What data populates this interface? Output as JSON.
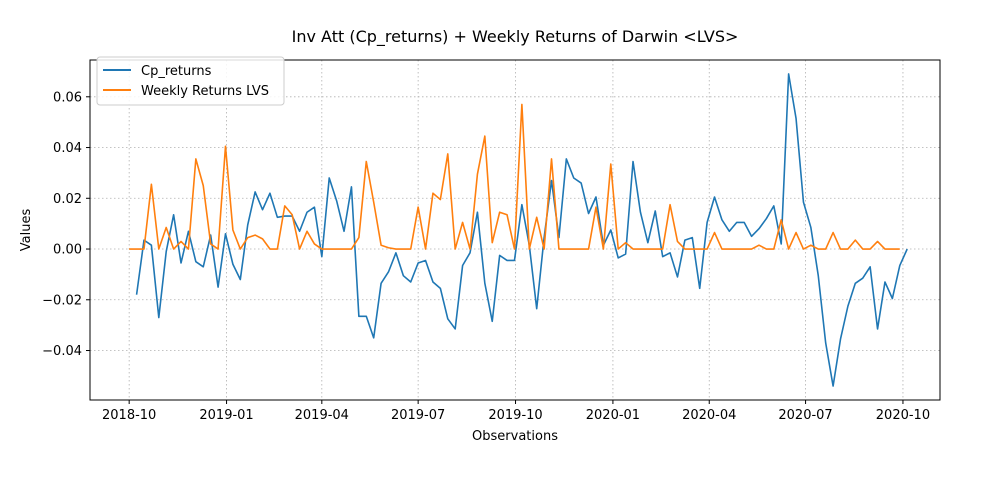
{
  "chart_data": {
    "type": "line",
    "title": "Inv Att (Cp_returns) + Weekly Returns of Darwin <LVS>",
    "xlabel": "Observations",
    "ylabel": "Values",
    "grid": true,
    "legend_position": "upper-left",
    "xlim": [
      "2018-08-25",
      "2020-11-05"
    ],
    "ylim": [
      -0.0595,
      0.0745
    ],
    "x_ticks": [
      {
        "date": "2018-10-01",
        "label": "2018-10"
      },
      {
        "date": "2019-01-01",
        "label": "2019-01"
      },
      {
        "date": "2019-04-01",
        "label": "2019-04"
      },
      {
        "date": "2019-07-01",
        "label": "2019-07"
      },
      {
        "date": "2019-10-01",
        "label": "2019-10"
      },
      {
        "date": "2020-01-01",
        "label": "2020-01"
      },
      {
        "date": "2020-04-01",
        "label": "2020-04"
      },
      {
        "date": "2020-07-01",
        "label": "2020-07"
      },
      {
        "date": "2020-10-01",
        "label": "2020-10"
      }
    ],
    "y_ticks": [
      {
        "value": -0.04,
        "label": "−0.04"
      },
      {
        "value": -0.02,
        "label": "−0.02"
      },
      {
        "value": 0.0,
        "label": "0.00"
      },
      {
        "value": 0.02,
        "label": "0.02"
      },
      {
        "value": 0.04,
        "label": "0.04"
      },
      {
        "value": 0.06,
        "label": "0.06"
      }
    ],
    "series": [
      {
        "name": "Cp_returns",
        "color": "#1f77b4",
        "points": [
          [
            "2018-10-08",
            -0.018
          ],
          [
            "2018-10-15",
            0.0035
          ],
          [
            "2018-10-22",
            0.0015
          ],
          [
            "2018-10-29",
            -0.027
          ],
          [
            "2018-11-05",
            -0.001
          ],
          [
            "2018-11-12",
            0.0135
          ],
          [
            "2018-11-19",
            -0.0055
          ],
          [
            "2018-11-26",
            0.007
          ],
          [
            "2018-12-03",
            -0.005
          ],
          [
            "2018-12-10",
            -0.007
          ],
          [
            "2018-12-17",
            0.0055
          ],
          [
            "2018-12-24",
            -0.015
          ],
          [
            "2018-12-31",
            0.006
          ],
          [
            "2019-01-07",
            -0.006
          ],
          [
            "2019-01-14",
            -0.012
          ],
          [
            "2019-01-21",
            0.0095
          ],
          [
            "2019-01-28",
            0.0225
          ],
          [
            "2019-02-04",
            0.0155
          ],
          [
            "2019-02-11",
            0.022
          ],
          [
            "2019-02-18",
            0.0125
          ],
          [
            "2019-02-25",
            0.013
          ],
          [
            "2019-03-04",
            0.013
          ],
          [
            "2019-03-11",
            0.007
          ],
          [
            "2019-03-18",
            0.0145
          ],
          [
            "2019-03-25",
            0.0165
          ],
          [
            "2019-04-01",
            -0.003
          ],
          [
            "2019-04-08",
            0.028
          ],
          [
            "2019-04-15",
            0.019
          ],
          [
            "2019-04-22",
            0.007
          ],
          [
            "2019-04-29",
            0.0245
          ],
          [
            "2019-05-06",
            -0.0265
          ],
          [
            "2019-05-13",
            -0.0265
          ],
          [
            "2019-05-20",
            -0.035
          ],
          [
            "2019-05-27",
            -0.0135
          ],
          [
            "2019-06-03",
            -0.009
          ],
          [
            "2019-06-10",
            -0.0015
          ],
          [
            "2019-06-17",
            -0.0105
          ],
          [
            "2019-06-24",
            -0.013
          ],
          [
            "2019-07-01",
            -0.0055
          ],
          [
            "2019-07-08",
            -0.0045
          ],
          [
            "2019-07-15",
            -0.013
          ],
          [
            "2019-07-22",
            -0.0155
          ],
          [
            "2019-07-29",
            -0.0275
          ],
          [
            "2019-08-05",
            -0.0315
          ],
          [
            "2019-08-12",
            -0.0065
          ],
          [
            "2019-08-19",
            -0.0015
          ],
          [
            "2019-08-26",
            0.0145
          ],
          [
            "2019-09-02",
            -0.0135
          ],
          [
            "2019-09-09",
            -0.0285
          ],
          [
            "2019-09-16",
            -0.0025
          ],
          [
            "2019-09-23",
            -0.0045
          ],
          [
            "2019-09-30",
            -0.0045
          ],
          [
            "2019-10-07",
            0.0175
          ],
          [
            "2019-10-14",
            0.0015
          ],
          [
            "2019-10-21",
            -0.0235
          ],
          [
            "2019-10-28",
            0.0045
          ],
          [
            "2019-11-04",
            0.027
          ],
          [
            "2019-11-11",
            0.0045
          ],
          [
            "2019-11-18",
            0.0355
          ],
          [
            "2019-11-25",
            0.028
          ],
          [
            "2019-12-02",
            0.026
          ],
          [
            "2019-12-09",
            0.014
          ],
          [
            "2019-12-16",
            0.0205
          ],
          [
            "2019-12-23",
            0.0015
          ],
          [
            "2019-12-30",
            0.0075
          ],
          [
            "2020-01-06",
            -0.0035
          ],
          [
            "2020-01-13",
            -0.002
          ],
          [
            "2020-01-20",
            0.0345
          ],
          [
            "2020-01-27",
            0.0145
          ],
          [
            "2020-02-03",
            0.0025
          ],
          [
            "2020-02-10",
            0.015
          ],
          [
            "2020-02-17",
            -0.003
          ],
          [
            "2020-02-24",
            -0.0015
          ],
          [
            "2020-03-02",
            -0.011
          ],
          [
            "2020-03-09",
            0.0035
          ],
          [
            "2020-03-16",
            0.0045
          ],
          [
            "2020-03-23",
            -0.0155
          ],
          [
            "2020-03-30",
            0.0105
          ],
          [
            "2020-04-06",
            0.0205
          ],
          [
            "2020-04-13",
            0.0115
          ],
          [
            "2020-04-20",
            0.007
          ],
          [
            "2020-04-27",
            0.0105
          ],
          [
            "2020-05-04",
            0.0105
          ],
          [
            "2020-05-11",
            0.005
          ],
          [
            "2020-05-18",
            0.008
          ],
          [
            "2020-05-25",
            0.012
          ],
          [
            "2020-06-01",
            0.017
          ],
          [
            "2020-06-08",
            0.002
          ],
          [
            "2020-06-15",
            0.069
          ],
          [
            "2020-06-22",
            0.0515
          ],
          [
            "2020-06-29",
            0.0185
          ],
          [
            "2020-07-06",
            0.0085
          ],
          [
            "2020-07-13",
            -0.0105
          ],
          [
            "2020-07-20",
            -0.037
          ],
          [
            "2020-07-27",
            -0.054
          ],
          [
            "2020-08-03",
            -0.0355
          ],
          [
            "2020-08-10",
            -0.0225
          ],
          [
            "2020-08-17",
            -0.0135
          ],
          [
            "2020-08-24",
            -0.0115
          ],
          [
            "2020-08-31",
            -0.007
          ],
          [
            "2020-09-07",
            -0.0315
          ],
          [
            "2020-09-14",
            -0.013
          ],
          [
            "2020-09-21",
            -0.0195
          ],
          [
            "2020-09-28",
            -0.0065
          ],
          [
            "2020-10-05",
            0.0
          ]
        ]
      },
      {
        "name": "Weekly Returns LVS",
        "color": "#ff7f0e",
        "points": [
          [
            "2018-10-01",
            0.0
          ],
          [
            "2018-10-08",
            0.0
          ],
          [
            "2018-10-15",
            0.0
          ],
          [
            "2018-10-22",
            0.0255
          ],
          [
            "2018-10-29",
            0.0
          ],
          [
            "2018-11-05",
            0.0085
          ],
          [
            "2018-11-12",
            0.0
          ],
          [
            "2018-11-19",
            0.003
          ],
          [
            "2018-11-26",
            0.0
          ],
          [
            "2018-12-03",
            0.0355
          ],
          [
            "2018-12-10",
            0.025
          ],
          [
            "2018-12-17",
            0.002
          ],
          [
            "2018-12-24",
            0.0
          ],
          [
            "2018-12-31",
            0.0405
          ],
          [
            "2019-01-07",
            0.0075
          ],
          [
            "2019-01-14",
            0.0
          ],
          [
            "2019-01-21",
            0.0045
          ],
          [
            "2019-01-28",
            0.0055
          ],
          [
            "2019-02-04",
            0.004
          ],
          [
            "2019-02-11",
            0.0
          ],
          [
            "2019-02-18",
            0.0
          ],
          [
            "2019-02-25",
            0.017
          ],
          [
            "2019-03-04",
            0.0135
          ],
          [
            "2019-03-11",
            0.0
          ],
          [
            "2019-03-18",
            0.007
          ],
          [
            "2019-03-25",
            0.002
          ],
          [
            "2019-04-01",
            0.0
          ],
          [
            "2019-04-08",
            0.0
          ],
          [
            "2019-04-15",
            0.0
          ],
          [
            "2019-04-22",
            0.0
          ],
          [
            "2019-04-29",
            0.0
          ],
          [
            "2019-05-06",
            0.0045
          ],
          [
            "2019-05-13",
            0.0345
          ],
          [
            "2019-05-20",
            0.0185
          ],
          [
            "2019-05-27",
            0.0015
          ],
          [
            "2019-06-03",
            0.0005
          ],
          [
            "2019-06-10",
            0.0
          ],
          [
            "2019-06-17",
            0.0
          ],
          [
            "2019-06-24",
            0.0
          ],
          [
            "2019-07-01",
            0.0165
          ],
          [
            "2019-07-08",
            0.0
          ],
          [
            "2019-07-15",
            0.022
          ],
          [
            "2019-07-22",
            0.0195
          ],
          [
            "2019-07-29",
            0.0375
          ],
          [
            "2019-08-05",
            0.0
          ],
          [
            "2019-08-12",
            0.0105
          ],
          [
            "2019-08-19",
            0.0
          ],
          [
            "2019-08-26",
            0.0295
          ],
          [
            "2019-09-02",
            0.0445
          ],
          [
            "2019-09-09",
            0.0025
          ],
          [
            "2019-09-16",
            0.0145
          ],
          [
            "2019-09-23",
            0.0135
          ],
          [
            "2019-09-30",
            0.0
          ],
          [
            "2019-10-07",
            0.057
          ],
          [
            "2019-10-14",
            0.0
          ],
          [
            "2019-10-21",
            0.0125
          ],
          [
            "2019-10-28",
            0.0
          ],
          [
            "2019-11-04",
            0.0355
          ],
          [
            "2019-11-11",
            0.0
          ],
          [
            "2019-11-18",
            0.0
          ],
          [
            "2019-11-25",
            0.0
          ],
          [
            "2019-12-02",
            0.0
          ],
          [
            "2019-12-09",
            0.0
          ],
          [
            "2019-12-16",
            0.0165
          ],
          [
            "2019-12-23",
            0.0
          ],
          [
            "2019-12-30",
            0.0335
          ],
          [
            "2020-01-06",
            0.0
          ],
          [
            "2020-01-13",
            0.0025
          ],
          [
            "2020-01-20",
            0.0
          ],
          [
            "2020-01-27",
            0.0
          ],
          [
            "2020-02-03",
            0.0
          ],
          [
            "2020-02-10",
            0.0
          ],
          [
            "2020-02-17",
            0.0
          ],
          [
            "2020-02-24",
            0.0175
          ],
          [
            "2020-03-02",
            0.003
          ],
          [
            "2020-03-09",
            0.0
          ],
          [
            "2020-03-16",
            0.0
          ],
          [
            "2020-03-23",
            0.0
          ],
          [
            "2020-03-30",
            0.0
          ],
          [
            "2020-04-06",
            0.0065
          ],
          [
            "2020-04-13",
            0.0
          ],
          [
            "2020-04-20",
            0.0
          ],
          [
            "2020-04-27",
            0.0
          ],
          [
            "2020-05-04",
            0.0
          ],
          [
            "2020-05-11",
            0.0
          ],
          [
            "2020-05-18",
            0.0015
          ],
          [
            "2020-05-25",
            0.0
          ],
          [
            "2020-06-01",
            0.0
          ],
          [
            "2020-06-08",
            0.0115
          ],
          [
            "2020-06-15",
            0.0
          ],
          [
            "2020-06-22",
            0.0065
          ],
          [
            "2020-06-29",
            0.0
          ],
          [
            "2020-07-06",
            0.0015
          ],
          [
            "2020-07-13",
            0.0
          ],
          [
            "2020-07-20",
            0.0
          ],
          [
            "2020-07-27",
            0.0065
          ],
          [
            "2020-08-03",
            0.0
          ],
          [
            "2020-08-10",
            0.0
          ],
          [
            "2020-08-17",
            0.0035
          ],
          [
            "2020-08-24",
            0.0
          ],
          [
            "2020-08-31",
            0.0
          ],
          [
            "2020-09-07",
            0.003
          ],
          [
            "2020-09-14",
            0.0
          ],
          [
            "2020-09-21",
            0.0
          ],
          [
            "2020-09-28",
            0.0
          ]
        ]
      }
    ]
  }
}
